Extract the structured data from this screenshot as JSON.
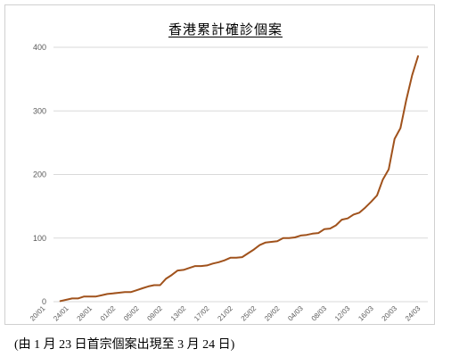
{
  "chart_data": {
    "type": "line",
    "title": "香港累計確診個案",
    "caption": "(由 1 月 23 日首宗個案出現至 3 月 24 日)",
    "ylim": [
      0,
      400
    ],
    "yticks": [
      0,
      100,
      200,
      300,
      400
    ],
    "grid": true,
    "legend": "none",
    "line_color": "#a0521c",
    "xtick_labels": [
      "20/01",
      "24/01",
      "28/01",
      "01/02",
      "05/02",
      "09/02",
      "13/02",
      "17/02",
      "21/02",
      "25/02",
      "29/02",
      "04/03",
      "08/03",
      "12/03",
      "16/03",
      "20/03",
      "24/03"
    ],
    "x_start": "20/01",
    "series": [
      {
        "x": [
          "23/01",
          "24/01",
          "25/01",
          "26/01",
          "27/01",
          "28/01",
          "29/01",
          "30/01",
          "31/01",
          "01/02",
          "02/02",
          "03/02",
          "04/02",
          "05/02",
          "06/02",
          "07/02",
          "08/02",
          "09/02",
          "10/02",
          "11/02",
          "12/02",
          "13/02",
          "14/02",
          "15/02",
          "16/02",
          "17/02",
          "18/02",
          "19/02",
          "20/02",
          "21/02",
          "22/02",
          "23/02",
          "24/02",
          "25/02",
          "26/02",
          "27/02",
          "28/02",
          "29/02",
          "01/03",
          "02/03",
          "03/03",
          "04/03",
          "05/03",
          "06/03",
          "07/03",
          "08/03",
          "09/03",
          "10/03",
          "11/03",
          "12/03",
          "13/03",
          "14/03",
          "15/03",
          "16/03",
          "17/03",
          "18/03",
          "19/03",
          "20/03",
          "21/03",
          "22/03",
          "23/03",
          "24/03"
        ],
        "values": [
          1,
          3,
          5,
          5,
          8,
          8,
          8,
          10,
          12,
          13,
          14,
          15,
          15,
          18,
          21,
          24,
          26,
          26,
          36,
          42,
          49,
          50,
          53,
          56,
          56,
          57,
          60,
          62,
          65,
          69,
          69,
          70,
          76,
          82,
          89,
          93,
          94,
          95,
          100,
          100,
          101,
          104,
          105,
          107,
          108,
          114,
          115,
          120,
          129,
          131,
          137,
          140,
          148,
          157,
          167,
          192,
          208,
          256,
          273,
          317,
          356,
          386
        ]
      }
    ]
  }
}
